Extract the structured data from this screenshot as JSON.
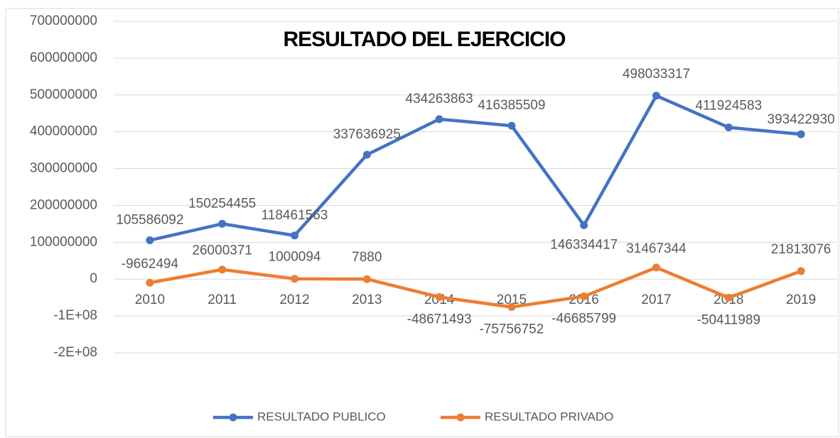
{
  "chart_data": {
    "type": "line",
    "title": "RESULTADO DEL EJERCICIO",
    "categories": [
      "2010",
      "2011",
      "2012",
      "2013",
      "2014",
      "2015",
      "2016",
      "2017",
      "2018",
      "2019"
    ],
    "series": [
      {
        "name": "RESULTADO PUBLICO",
        "color": "#4472c4",
        "values": [
          105586092,
          150254455,
          118461563,
          337636925,
          434263863,
          416385509,
          146334417,
          498033317,
          411924583,
          393422930
        ]
      },
      {
        "name": "RESULTADO PRIVADO",
        "color": "#ed7d31",
        "values": [
          -9662494,
          26000371,
          1000094,
          7880,
          -48671493,
          -75756752,
          -46685799,
          31467344,
          -50411989,
          21813076
        ]
      }
    ],
    "ylim": [
      -200000000,
      700000000
    ],
    "yticks": [
      {
        "value": -200000000,
        "label": "-2E+08"
      },
      {
        "value": -100000000,
        "label": "-1E+08"
      },
      0,
      100000000,
      200000000,
      300000000,
      400000000,
      500000000,
      600000000,
      700000000
    ],
    "grid": true,
    "legend": "bottom"
  }
}
